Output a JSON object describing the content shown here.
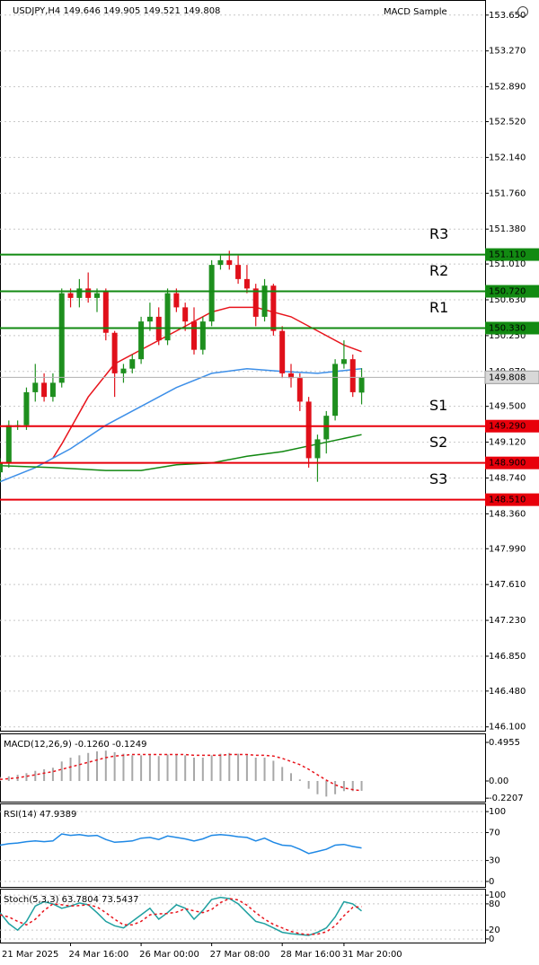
{
  "chart_data": [
    {
      "type": "candlestick",
      "title": "USDJPY,H4  149.646 149.905 149.521 149.808",
      "indicator_label": "MACD Sample",
      "up_color": "#1e8f1e",
      "down_color": "#e0101a",
      "x": [
        2,
        3,
        4,
        5,
        6,
        7,
        8,
        9,
        10,
        11,
        12,
        13,
        14,
        15,
        16,
        17,
        18,
        19,
        20,
        21,
        22,
        23,
        24,
        25,
        26,
        27,
        28,
        29,
        30,
        31,
        32,
        33,
        34,
        35,
        36,
        37,
        38,
        39,
        40,
        41,
        42,
        43
      ],
      "open": [
        148.8,
        148.9,
        149.3,
        149.3,
        149.65,
        149.75,
        149.6,
        149.75,
        150.7,
        150.65,
        150.75,
        150.65,
        150.72,
        150.28,
        149.85,
        149.9,
        150.0,
        150.4,
        150.45,
        150.2,
        150.7,
        150.55,
        150.4,
        150.1,
        150.4,
        151.0,
        151.05,
        151.0,
        150.85,
        150.75,
        150.45,
        150.78,
        150.3,
        149.85,
        149.8,
        149.55,
        148.95,
        149.15,
        149.4,
        149.95,
        150.0,
        149.646
      ],
      "high": [
        148.95,
        149.35,
        149.35,
        149.7,
        149.95,
        149.85,
        149.85,
        150.75,
        150.75,
        150.85,
        150.92,
        150.75,
        150.75,
        150.3,
        149.95,
        150.05,
        150.45,
        150.6,
        150.55,
        150.75,
        150.75,
        150.6,
        150.55,
        150.45,
        151.05,
        151.1,
        151.15,
        151.1,
        151.0,
        150.8,
        150.85,
        150.8,
        150.35,
        149.95,
        149.85,
        149.6,
        149.2,
        149.45,
        150.0,
        150.2,
        150.05,
        149.905
      ],
      "low": [
        148.7,
        148.85,
        149.25,
        149.25,
        149.55,
        149.55,
        149.55,
        149.7,
        150.55,
        150.55,
        150.6,
        150.5,
        150.2,
        149.6,
        149.75,
        149.85,
        149.95,
        150.3,
        150.15,
        150.15,
        150.5,
        150.3,
        150.05,
        150.05,
        150.35,
        150.95,
        150.95,
        150.8,
        150.7,
        150.35,
        150.4,
        150.25,
        149.8,
        149.7,
        149.45,
        148.85,
        148.7,
        149.0,
        149.35,
        149.9,
        149.6,
        149.521
      ],
      "close": [
        148.9,
        149.3,
        149.3,
        149.65,
        149.75,
        149.6,
        149.75,
        150.7,
        150.65,
        150.75,
        150.65,
        150.7,
        150.28,
        149.85,
        149.9,
        150.0,
        150.4,
        150.45,
        150.2,
        150.7,
        150.55,
        150.4,
        150.1,
        150.4,
        151.0,
        151.05,
        151.0,
        150.85,
        150.75,
        150.45,
        150.78,
        150.3,
        149.85,
        149.8,
        149.55,
        148.95,
        149.15,
        149.4,
        149.95,
        150.0,
        149.65,
        149.808
      ],
      "lines": [
        {
          "color": "#e8141c",
          "x": [
            8,
            9,
            12,
            15,
            19,
            23,
            26,
            28,
            31,
            35,
            38,
            41,
            43
          ],
          "values": [
            148.95,
            149.1,
            149.6,
            149.95,
            150.15,
            150.35,
            150.5,
            150.55,
            150.55,
            150.45,
            150.3,
            150.15,
            150.08
          ]
        },
        {
          "color": "#3d8fe8",
          "x": [
            2,
            6,
            10,
            14,
            18,
            22,
            26,
            30,
            34,
            38,
            43
          ],
          "values": [
            148.7,
            148.85,
            149.05,
            149.3,
            149.5,
            149.7,
            149.85,
            149.9,
            149.87,
            149.85,
            149.9
          ]
        },
        {
          "color": "#118811",
          "x": [
            2,
            8,
            14,
            18,
            22,
            26,
            30,
            34,
            38,
            43
          ],
          "values": [
            148.87,
            148.85,
            148.82,
            148.82,
            148.88,
            148.9,
            148.97,
            149.02,
            149.1,
            149.2
          ]
        }
      ],
      "levels": [
        {
          "name": "R3",
          "value": 151.11,
          "label": "151.110",
          "color": "#128a12"
        },
        {
          "name": "R2",
          "value": 150.72,
          "label": "150.720",
          "color": "#128a12"
        },
        {
          "name": "R1",
          "value": 150.33,
          "label": "150.330",
          "color": "#128a12"
        },
        {
          "name": "S1",
          "value": 149.29,
          "label": "149.290",
          "color": "#e8000b"
        },
        {
          "name": "S2",
          "value": 148.9,
          "label": "148.900",
          "color": "#e8000b"
        },
        {
          "name": "S3",
          "value": 148.51,
          "label": "148.510",
          "color": "#e8000b"
        }
      ],
      "current": {
        "value": 149.808,
        "label": "149.808"
      },
      "xlim": [
        2,
        57
      ],
      "ylim": [
        146.05,
        153.81
      ],
      "grid": true,
      "yticks": [
        {
          "value": 153.65,
          "label": "153.650"
        },
        {
          "value": 153.27,
          "label": "153.270"
        },
        {
          "value": 152.89,
          "label": "152.890"
        },
        {
          "value": 152.52,
          "label": "152.520"
        },
        {
          "value": 152.14,
          "label": "152.140"
        },
        {
          "value": 151.76,
          "label": "151.760"
        },
        {
          "value": 151.38,
          "label": "151.380"
        },
        {
          "value": 151.01,
          "label": "151.010"
        },
        {
          "value": 150.63,
          "label": "150.630"
        },
        {
          "value": 150.25,
          "label": "150.250"
        },
        {
          "value": 149.87,
          "label": "149.870"
        },
        {
          "value": 149.5,
          "label": "149.500"
        },
        {
          "value": 149.12,
          "label": "149.120"
        },
        {
          "value": 148.74,
          "label": "148.740"
        },
        {
          "value": 148.36,
          "label": "148.360"
        },
        {
          "value": 147.99,
          "label": "147.990"
        },
        {
          "value": 147.61,
          "label": "147.610"
        },
        {
          "value": 147.23,
          "label": "147.230"
        },
        {
          "value": 146.85,
          "label": "146.850"
        },
        {
          "value": 146.48,
          "label": "146.480"
        },
        {
          "value": 146.1,
          "label": "146.100"
        }
      ],
      "xticks": [
        {
          "value": 0,
          "label": "21 Mar 2025"
        },
        {
          "value": 10,
          "label": "24 Mar 16:00"
        },
        {
          "value": 18,
          "label": "26 Mar 00:00"
        },
        {
          "value": 26,
          "label": "27 Mar 08:00"
        },
        {
          "value": 34,
          "label": "28 Mar 16:00"
        },
        {
          "value": 41,
          "label": "31 Mar 20:00"
        }
      ]
    },
    {
      "type": "macd",
      "title": "MACD(12,26,9) -0.1260 -0.1249",
      "color": "#a8a8a8",
      "values": [
        0.05,
        0.06,
        0.08,
        0.1,
        0.13,
        0.15,
        0.17,
        0.25,
        0.3,
        0.33,
        0.36,
        0.38,
        0.39,
        0.37,
        0.35,
        0.33,
        0.33,
        0.34,
        0.32,
        0.34,
        0.34,
        0.33,
        0.3,
        0.3,
        0.33,
        0.35,
        0.36,
        0.35,
        0.33,
        0.3,
        0.3,
        0.26,
        0.18,
        0.1,
        0.02,
        -0.1,
        -0.17,
        -0.2,
        -0.17,
        -0.13,
        -0.13,
        -0.126
      ],
      "signal": {
        "color": "#e8141c",
        "values": [
          0.02,
          0.03,
          0.04,
          0.06,
          0.08,
          0.1,
          0.12,
          0.15,
          0.18,
          0.21,
          0.24,
          0.27,
          0.3,
          0.32,
          0.33,
          0.34,
          0.34,
          0.34,
          0.34,
          0.34,
          0.34,
          0.34,
          0.33,
          0.33,
          0.33,
          0.33,
          0.34,
          0.34,
          0.34,
          0.33,
          0.33,
          0.32,
          0.29,
          0.25,
          0.21,
          0.15,
          0.08,
          0.01,
          -0.05,
          -0.09,
          -0.11,
          -0.1249
        ]
      },
      "ylim": [
        -0.265,
        0.611
      ],
      "yticks": [
        0.4955,
        {
          "value": 0,
          "label": "0.00"
        },
        -0.2207
      ]
    },
    {
      "type": "line",
      "title": "RSI(14) 47.9389",
      "series": [
        {
          "color": "#1e88e5",
          "values": [
            52,
            54,
            55,
            57,
            58,
            57,
            58,
            68,
            66,
            67,
            65,
            66,
            60,
            56,
            57,
            58,
            62,
            63,
            60,
            65,
            63,
            61,
            58,
            61,
            66,
            67,
            66,
            64,
            63,
            58,
            62,
            56,
            52,
            51,
            46,
            40,
            43,
            46,
            52,
            53,
            50,
            47.9389
          ]
        }
      ],
      "ylim": [
        -7.8,
        111.7
      ],
      "yticks": [
        100,
        70,
        30,
        0
      ],
      "grid": true
    },
    {
      "type": "line",
      "title": "Stoch(5,3,3) 63.7804 73.5437",
      "series": [
        {
          "color": "#1fa0a0",
          "values": [
            60,
            35,
            20,
            40,
            75,
            85,
            80,
            70,
            75,
            82,
            78,
            60,
            40,
            30,
            25,
            40,
            55,
            70,
            45,
            60,
            78,
            70,
            45,
            65,
            90,
            95,
            92,
            80,
            60,
            40,
            35,
            25,
            15,
            12,
            10,
            8,
            15,
            25,
            50,
            85,
            80,
            63.7804
          ]
        },
        {
          "color": "#e8141c",
          "dashed": true,
          "values": [
            55,
            50,
            40,
            32,
            45,
            65,
            80,
            78,
            75,
            76,
            78,
            73,
            60,
            45,
            32,
            32,
            40,
            55,
            57,
            58,
            61,
            69,
            64,
            60,
            67,
            83,
            92,
            89,
            77,
            60,
            45,
            33,
            25,
            17,
            12,
            10,
            11,
            16,
            30,
            53,
            72,
            73.5437
          ]
        }
      ],
      "ylim": [
        -8.3,
        114.6
      ],
      "yticks": [
        100,
        80,
        20,
        0
      ],
      "grid": true
    }
  ]
}
